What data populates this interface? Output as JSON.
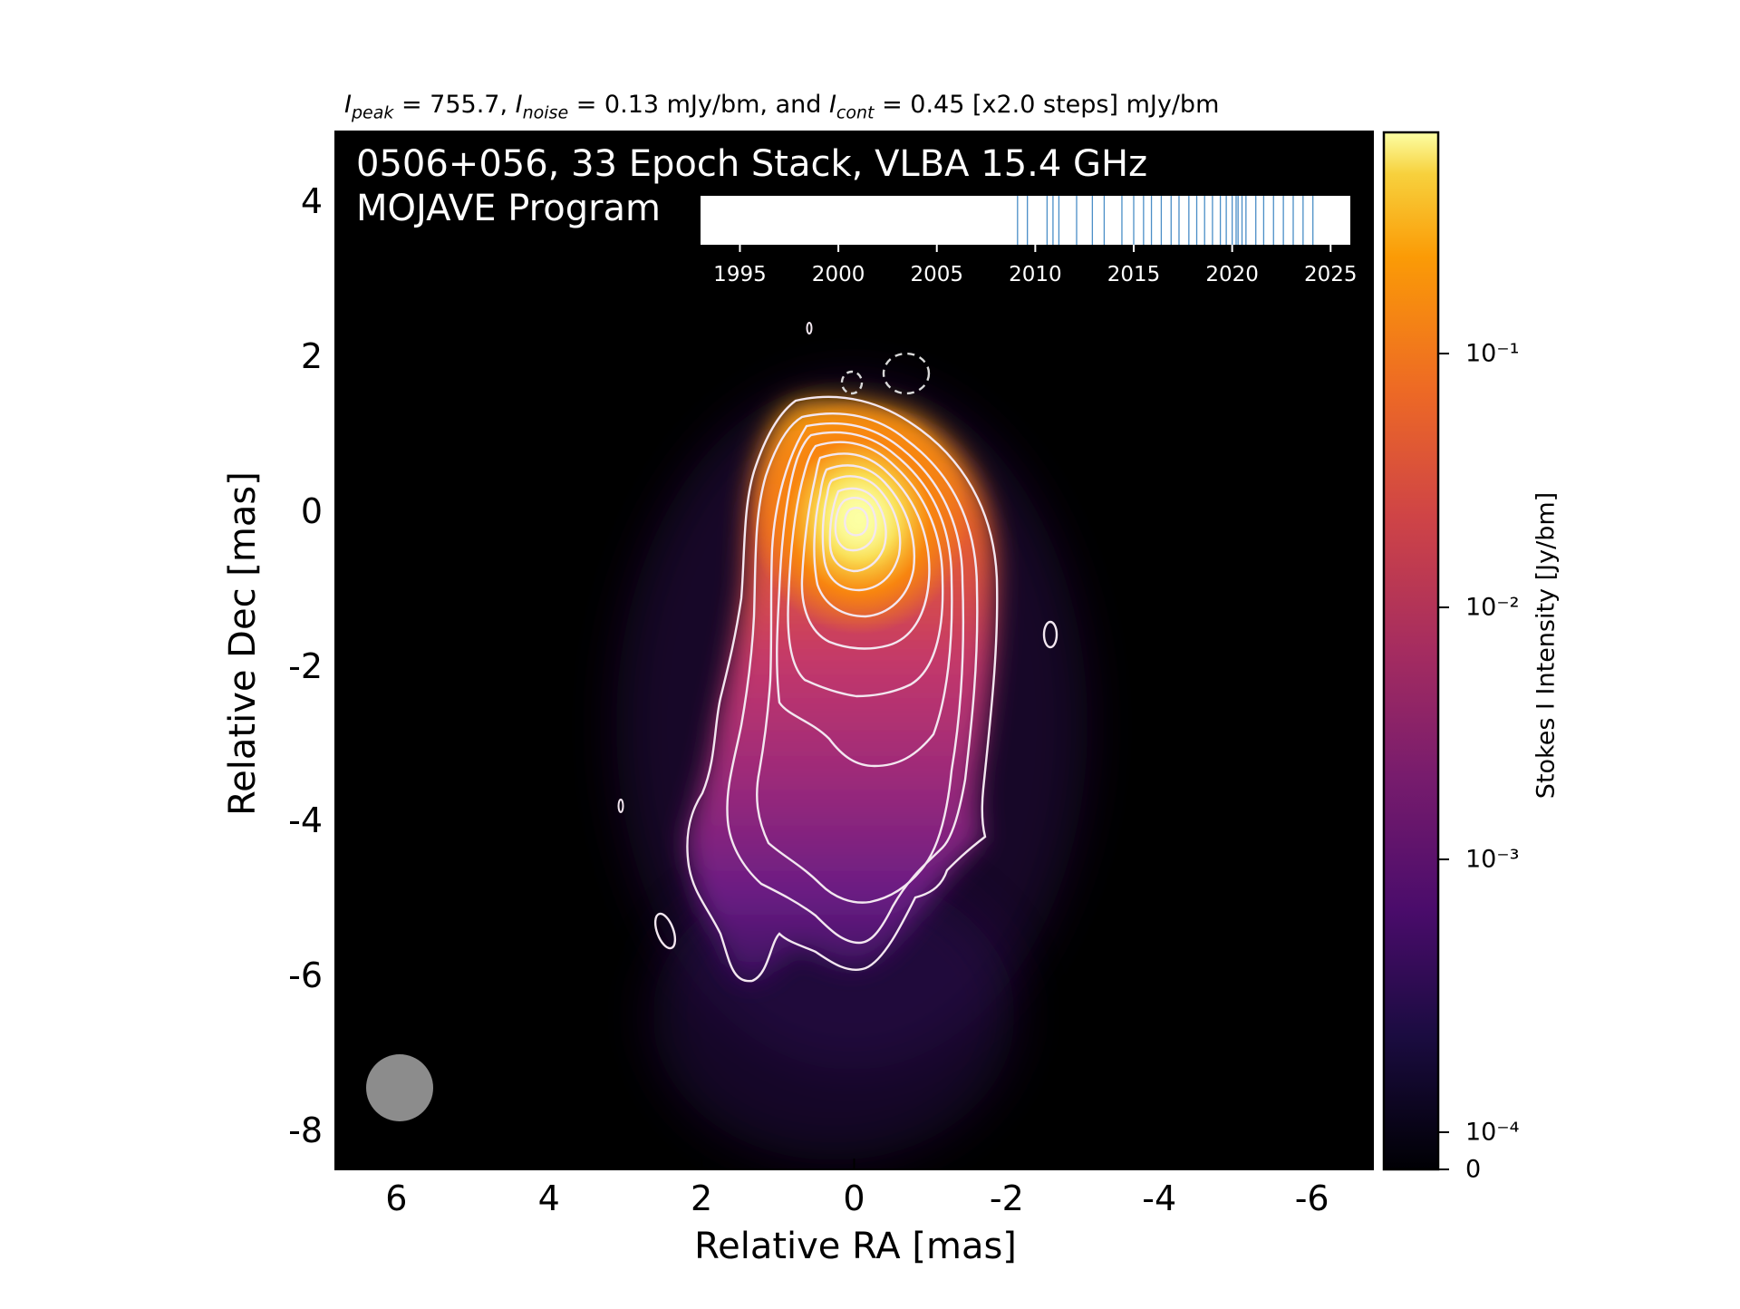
{
  "header": {
    "i_peak": "755.7",
    "i_noise": "0.13",
    "i_cont": "0.45",
    "steps": "[x2.0 steps]",
    "unit": "mJy/bm",
    "caption_part1": " = 755.7, ",
    "caption_part2": " = 0.13 mJy/bm, and ",
    "caption_part3": " = 0.45 [x2.0 steps] mJy/bm"
  },
  "colors": {
    "background": "#000000",
    "contour": "#f3e7f0",
    "beam": "#8c8c8c",
    "timeline_tick": "#4a8ec7",
    "colormap": "inferno"
  },
  "chart_data": {
    "type": "heatmap",
    "title": "0506+056, 33 Epoch Stack, VLBA 15.4 GHz",
    "subtitle": "MOJAVE Program",
    "xlabel": "Relative RA [mas]",
    "ylabel": "Relative Dec [mas]",
    "xlim": [
      6.8,
      -6.8
    ],
    "ylim": [
      -8.5,
      4.9
    ],
    "xticks": [
      6,
      4,
      2,
      0,
      -2,
      -4,
      -6
    ],
    "yticks": [
      4,
      2,
      0,
      -2,
      -4,
      -6,
      -8
    ],
    "colorbar": {
      "label": "Stokes I Intensity [Jy/bm]",
      "scale": "log",
      "ticks": [
        "10⁻¹",
        "10⁻²",
        "10⁻³",
        "10⁻⁴",
        "0"
      ],
      "tick_values": [
        0.1,
        0.01,
        0.001,
        0.0001,
        0
      ],
      "max": 0.7557
    },
    "peak_position": [
      0.0,
      -0.1
    ],
    "contour_levels_mJy": [
      0.45,
      0.9,
      1.8,
      3.6,
      7.2,
      14.4,
      28.8,
      57.6,
      115.2,
      230.4,
      460.8
    ],
    "negative_contour_centers": [
      [
        0.0,
        1.6
      ],
      [
        -0.7,
        1.7
      ]
    ],
    "isolated_contours": [
      [
        2.4,
        -5.4
      ],
      [
        -2.65,
        -1.75
      ],
      [
        3.0,
        -4.0
      ]
    ],
    "beam": {
      "center": [
        6.0,
        -7.7
      ],
      "major_mas": 0.85,
      "minor_mas": 0.85
    },
    "timeline": {
      "xlim": [
        1993,
        2026
      ],
      "ticks": [
        1995,
        2000,
        2005,
        2010,
        2015,
        2020,
        2025
      ],
      "epochs": [
        2009.1,
        2009.6,
        2010.6,
        2010.9,
        2011.2,
        2012.1,
        2012.9,
        2013.5,
        2014.4,
        2015.0,
        2015.5,
        2015.9,
        2016.4,
        2016.9,
        2017.3,
        2017.8,
        2018.2,
        2018.6,
        2019.0,
        2019.4,
        2019.7,
        2020.0,
        2020.2,
        2020.3,
        2020.5,
        2020.7,
        2021.2,
        2021.6,
        2022.1,
        2022.6,
        2023.1,
        2023.6,
        2024.1
      ]
    }
  }
}
